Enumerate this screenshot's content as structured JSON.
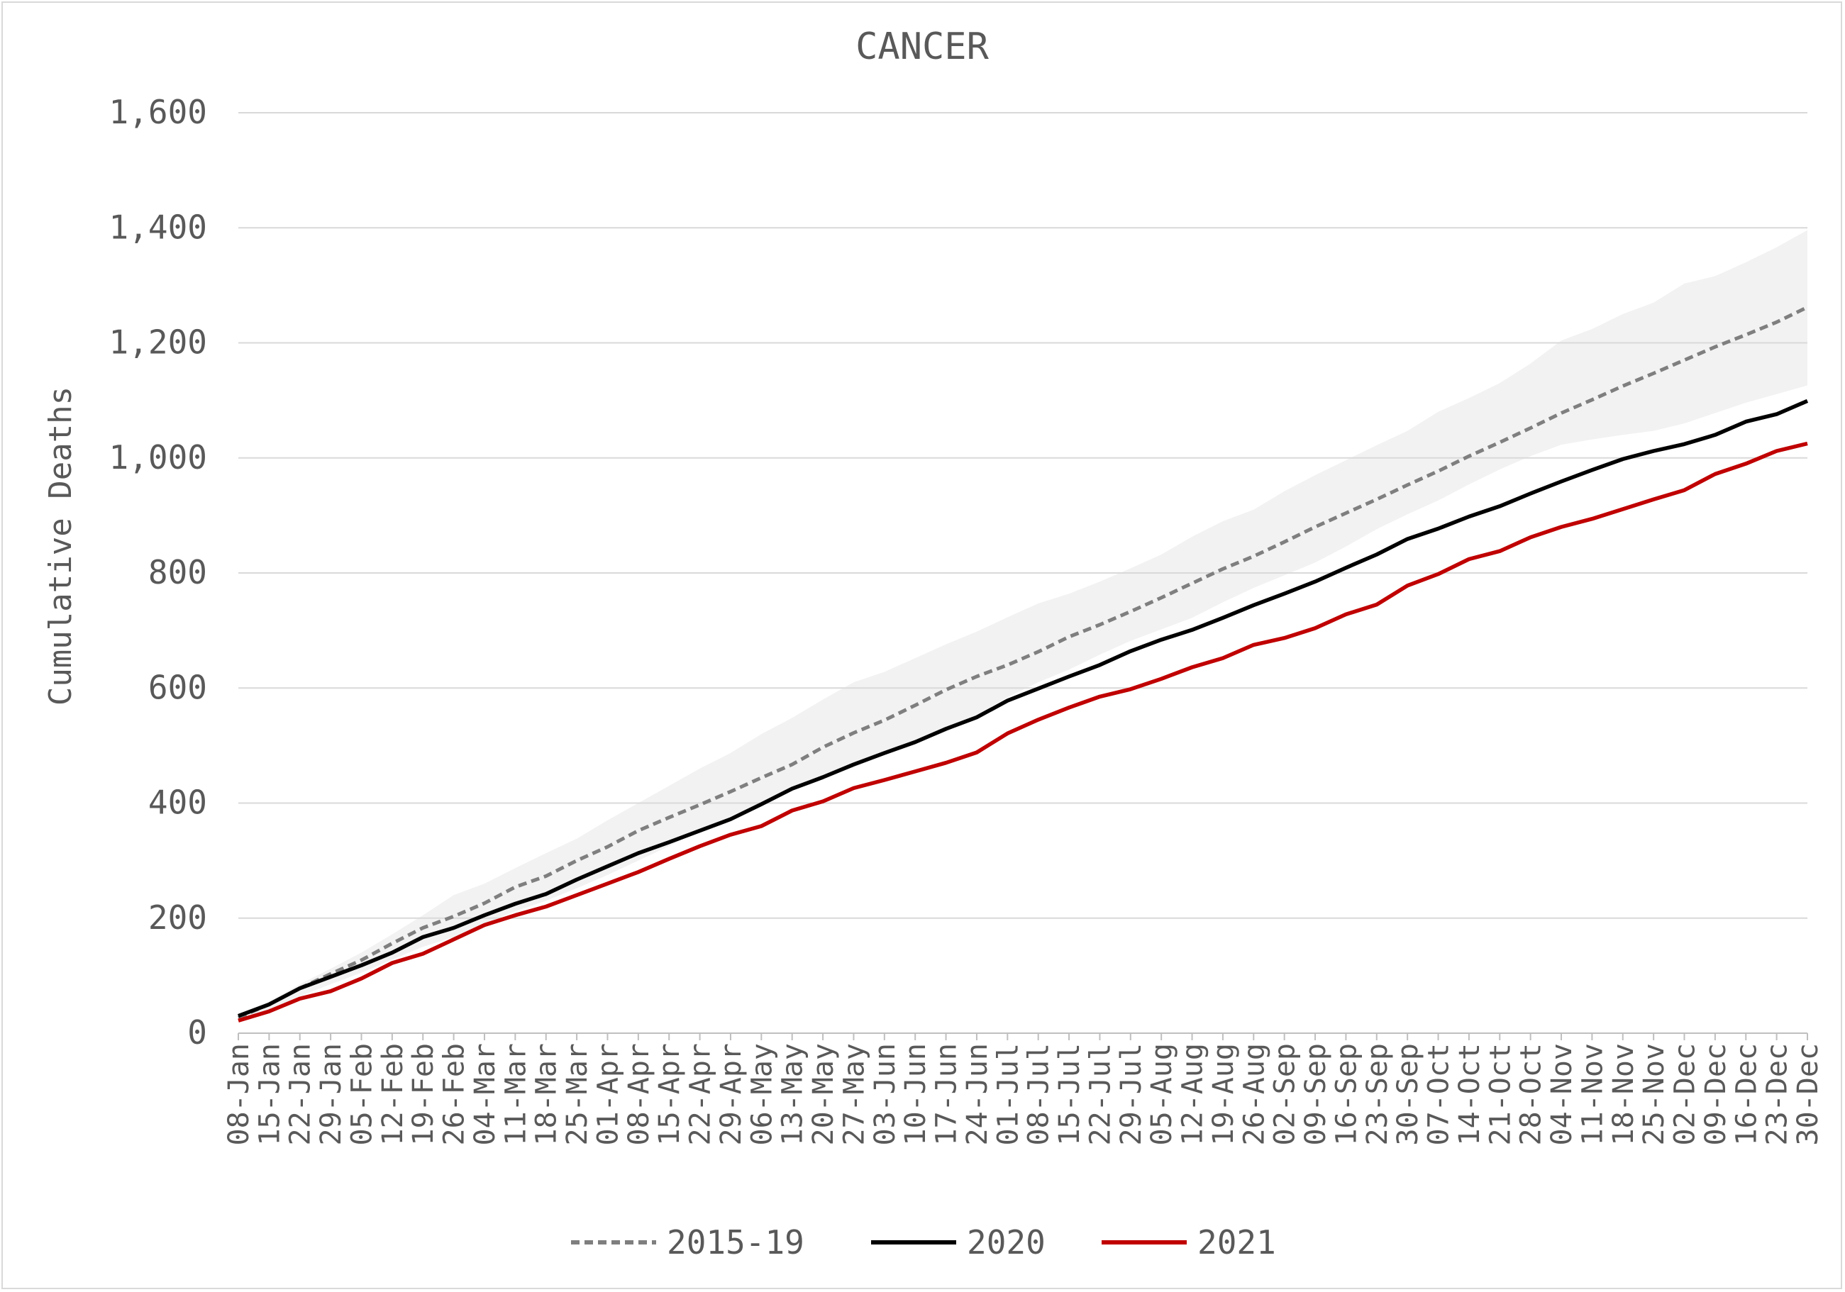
{
  "chart_data": {
    "type": "line",
    "title": "CANCER",
    "ylabel": "Cumulative Deaths",
    "xlabel": "",
    "ylim": [
      0,
      1600
    ],
    "yticks": [
      0,
      200,
      400,
      600,
      800,
      1000,
      1200,
      1400,
      1600
    ],
    "ytick_labels": [
      "0",
      "200",
      "400",
      "600",
      "800",
      "1,000",
      "1,200",
      "1,400",
      "1,600"
    ],
    "grid": "horizontal",
    "legend_position": "bottom",
    "x": [
      "08-Jan",
      "15-Jan",
      "22-Jan",
      "29-Jan",
      "05-Feb",
      "12-Feb",
      "19-Feb",
      "26-Feb",
      "04-Mar",
      "11-Mar",
      "18-Mar",
      "25-Mar",
      "01-Apr",
      "08-Apr",
      "15-Apr",
      "22-Apr",
      "29-Apr",
      "06-May",
      "13-May",
      "20-May",
      "27-May",
      "03-Jun",
      "10-Jun",
      "17-Jun",
      "24-Jun",
      "01-Jul",
      "08-Jul",
      "15-Jul",
      "22-Jul",
      "29-Jul",
      "05-Aug",
      "12-Aug",
      "19-Aug",
      "26-Aug",
      "02-Sep",
      "09-Sep",
      "16-Sep",
      "23-Sep",
      "30-Sep",
      "07-Oct",
      "14-Oct",
      "21-Oct",
      "28-Oct",
      "04-Nov",
      "11-Nov",
      "18-Nov",
      "25-Nov",
      "02-Dec",
      "09-Dec",
      "16-Dec",
      "23-Dec",
      "30-Dec"
    ],
    "series": [
      {
        "name": "2015-19",
        "style": "dashed",
        "color": "#7f7f7f",
        "values": [
          27,
          50,
          78,
          103,
          127,
          156,
          183,
          203,
          226,
          254,
          273,
          300,
          324,
          352,
          375,
          397,
          420,
          444,
          467,
          497,
          522,
          544,
          570,
          597,
          620,
          640,
          663,
          689,
          710,
          733,
          757,
          782,
          807,
          829,
          854,
          880,
          904,
          928,
          953,
          977,
          1003,
          1027,
          1052,
          1078,
          1101,
          1125,
          1147,
          1170,
          1193,
          1214,
          1236,
          1262
        ]
      },
      {
        "name": "2020",
        "style": "solid",
        "color": "#000000",
        "values": [
          30,
          50,
          78,
          98,
          118,
          140,
          167,
          183,
          205,
          225,
          242,
          267,
          290,
          313,
          332,
          352,
          372,
          398,
          425,
          445,
          467,
          487,
          506,
          529,
          549,
          578,
          599,
          620,
          640,
          664,
          684,
          701,
          722,
          744,
          764,
          785,
          809,
          832,
          859,
          877,
          898,
          916,
          938,
          959,
          979,
          998,
          1012,
          1024,
          1040,
          1063,
          1076,
          1099
        ]
      },
      {
        "name": "2021",
        "style": "solid",
        "color": "#c00000",
        "values": [
          22,
          38,
          60,
          73,
          95,
          122,
          138,
          163,
          188,
          205,
          220,
          240,
          260,
          280,
          303,
          325,
          345,
          360,
          387,
          403,
          426,
          440,
          455,
          470,
          488,
          521,
          545,
          566,
          585,
          598,
          616,
          636,
          652,
          675,
          687,
          704,
          728,
          745,
          778,
          798,
          824,
          838,
          862,
          880,
          894,
          911,
          928,
          944,
          972,
          990,
          1012,
          1025
        ]
      },
      {
        "name": "",
        "type": "band",
        "color": "#f2f2f2",
        "upper": [
          30,
          55,
          85,
          112,
          140,
          172,
          205,
          240,
          260,
          287,
          313,
          338,
          370,
          400,
          430,
          460,
          487,
          520,
          548,
          580,
          610,
          628,
          652,
          676,
          698,
          723,
          747,
          764,
          785,
          808,
          832,
          863,
          890,
          910,
          942,
          970,
          996,
          1022,
          1047,
          1080,
          1104,
          1130,
          1164,
          1204,
          1224,
          1250,
          1270,
          1303,
          1316,
          1340,
          1366,
          1396
        ],
        "lower": [
          22,
          40,
          64,
          85,
          105,
          128,
          150,
          167,
          190,
          212,
          230,
          252,
          275,
          300,
          325,
          352,
          377,
          400,
          425,
          444,
          462,
          484,
          504,
          524,
          552,
          584,
          610,
          632,
          658,
          682,
          702,
          722,
          749,
          774,
          796,
          818,
          846,
          876,
          902,
          926,
          954,
          980,
          1003,
          1023,
          1032,
          1040,
          1047,
          1060,
          1078,
          1096,
          1111,
          1126
        ]
      }
    ]
  }
}
